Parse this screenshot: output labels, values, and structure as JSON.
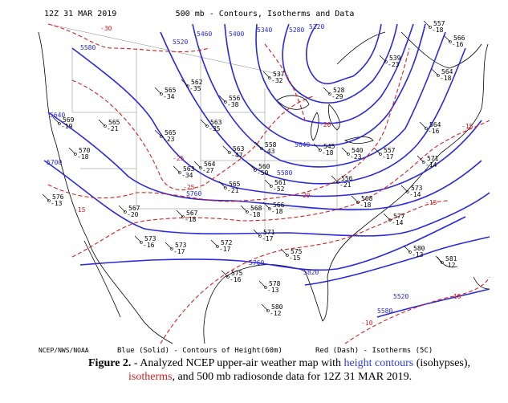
{
  "header": {
    "time": "12Z 31 MAR 2019",
    "title": "500 mb - Contours, Isotherms and Data"
  },
  "contours": [
    "5220",
    "5280",
    "5340",
    "5400",
    "5460",
    "5520",
    "5580",
    "5640",
    "5700",
    "5760",
    "5820",
    "5580",
    "5640",
    "5760",
    "5520",
    "5580"
  ],
  "isotherms": [
    "-30",
    "-25",
    "-25",
    "-20",
    "-15",
    "-15",
    "-15",
    "-10",
    "-10",
    "-20"
  ],
  "stations": [
    {
      "height": "565",
      "temp": "-34"
    },
    {
      "height": "562",
      "temp": "-35"
    },
    {
      "height": "556",
      "temp": "-38"
    },
    {
      "height": "563",
      "temp": "-35"
    },
    {
      "height": "569",
      "temp": "-19"
    },
    {
      "height": "570",
      "temp": "-18"
    },
    {
      "height": "565",
      "temp": "-21"
    },
    {
      "height": "565",
      "temp": "-23"
    },
    {
      "height": "563",
      "temp": "-47"
    },
    {
      "height": "558",
      "temp": "-43"
    },
    {
      "height": "563",
      "temp": "-34"
    },
    {
      "height": "564",
      "temp": "-27"
    },
    {
      "height": "565",
      "temp": "-21"
    },
    {
      "height": "560",
      "temp": "-50"
    },
    {
      "height": "561",
      "temp": "-52"
    },
    {
      "height": "567",
      "temp": "-20"
    },
    {
      "height": "567",
      "temp": "-18"
    },
    {
      "height": "568",
      "temp": "-18"
    },
    {
      "height": "566",
      "temp": "-18"
    },
    {
      "height": "573",
      "temp": "-16"
    },
    {
      "height": "573",
      "temp": "-17"
    },
    {
      "height": "572",
      "temp": "-17"
    },
    {
      "height": "571",
      "temp": "-17"
    },
    {
      "height": "575",
      "temp": "-15"
    },
    {
      "height": "576",
      "temp": "-13"
    },
    {
      "height": "575",
      "temp": "-16"
    },
    {
      "height": "578",
      "temp": "-13"
    },
    {
      "height": "580",
      "temp": "-12"
    },
    {
      "height": "577",
      "temp": "-14"
    },
    {
      "height": "580",
      "temp": "-13"
    },
    {
      "height": "581",
      "temp": "-12"
    },
    {
      "height": "573",
      "temp": "-14"
    },
    {
      "height": "568",
      "temp": "-18"
    },
    {
      "height": "556",
      "temp": "-21"
    },
    {
      "height": "545",
      "temp": "-18"
    },
    {
      "height": "557",
      "temp": "-18"
    },
    {
      "height": "566",
      "temp": "-16"
    },
    {
      "height": "564",
      "temp": "-18"
    },
    {
      "height": "564",
      "temp": "-16"
    },
    {
      "height": "571",
      "temp": "-14"
    },
    {
      "height": "557",
      "temp": "-17"
    },
    {
      "height": "539",
      "temp": "-23"
    },
    {
      "height": "528",
      "temp": "-29"
    },
    {
      "height": "537",
      "temp": "-32"
    },
    {
      "height": "540",
      "temp": "-23"
    }
  ],
  "footer": {
    "credit": "NCEP/NWS/NOAA",
    "blue_legend": "Blue (Solid) - Contours of Height(60m)",
    "red_legend": "Red (Dash) - Isotherms (5C)"
  },
  "caption": {
    "label": "Figure 2.",
    "text1": " - Analyzed NCEP upper-air weather map with ",
    "link1": "height contours",
    "text2": " (isohypses), ",
    "link2": "isotherms",
    "text3": ", and 500 mb radiosonde data for 12Z 31 MAR 2019."
  }
}
